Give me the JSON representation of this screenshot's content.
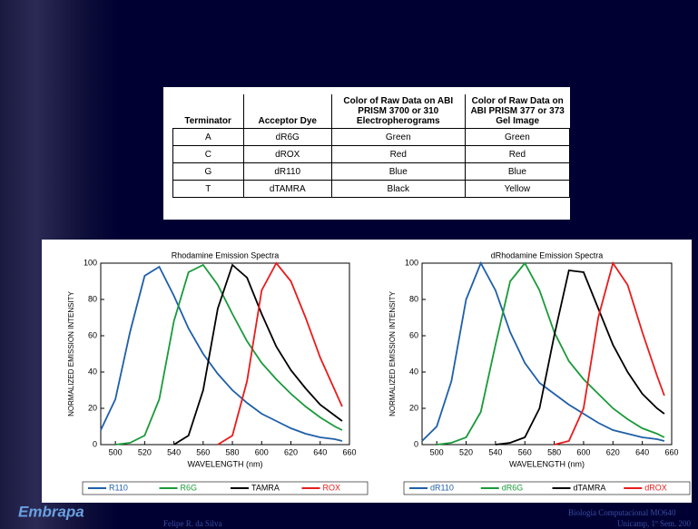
{
  "table": {
    "headers": [
      "Terminator",
      "Acceptor Dye",
      "Color of Raw Data on ABI PRISM 3700 or 310 Electropherograms",
      "Color of Raw Data on ABI PRISM 377 or 373 Gel Image"
    ],
    "rows": [
      [
        "A",
        "dR6G",
        "Green",
        "Green"
      ],
      [
        "C",
        "dROX",
        "Red",
        "Red"
      ],
      [
        "G",
        "dR110",
        "Blue",
        "Blue"
      ],
      [
        "T",
        "dTAMRA",
        "Black",
        "Yellow"
      ]
    ]
  },
  "chart_data": [
    {
      "type": "line",
      "title": "Rhodamine Emission Spectra",
      "x_label": "WAVELENGTH (nm)",
      "y_label": "NORMALIZED EMISSION INTENSITY",
      "x": [
        490,
        500,
        510,
        520,
        530,
        540,
        550,
        560,
        570,
        580,
        590,
        600,
        610,
        620,
        630,
        640,
        650,
        655
      ],
      "xlim": [
        490,
        660
      ],
      "xticks": [
        500,
        520,
        540,
        560,
        580,
        600,
        620,
        640,
        660
      ],
      "ylim": [
        0,
        100
      ],
      "yticks": [
        0,
        20,
        40,
        60,
        80,
        100
      ],
      "series": [
        {
          "name": "R110",
          "color": "#1f5fa8",
          "values": [
            8,
            25,
            62,
            93,
            98,
            82,
            64,
            50,
            39,
            30,
            23,
            17,
            13,
            9,
            6,
            4,
            3,
            2
          ]
        },
        {
          "name": "R6G",
          "color": "#1a9a3a",
          "values": [
            null,
            0,
            1,
            5,
            25,
            68,
            95,
            99,
            88,
            72,
            57,
            45,
            36,
            28,
            21,
            15,
            10,
            8
          ]
        },
        {
          "name": "TAMRA",
          "color": "#000000",
          "values": [
            null,
            null,
            null,
            null,
            null,
            0,
            5,
            30,
            75,
            99,
            92,
            72,
            54,
            41,
            31,
            22,
            16,
            13
          ]
        },
        {
          "name": "ROX",
          "color": "#e81c1c",
          "values": [
            null,
            null,
            null,
            null,
            null,
            null,
            null,
            null,
            0,
            5,
            35,
            85,
            100,
            90,
            70,
            48,
            30,
            21
          ]
        }
      ]
    },
    {
      "type": "line",
      "title": "dRhodamine Emission Spectra",
      "x_label": "WAVELENGTH (nm)",
      "y_label": "NORMALIZED EMISSION INTENSITY",
      "x": [
        490,
        500,
        510,
        520,
        530,
        540,
        550,
        560,
        570,
        580,
        590,
        600,
        610,
        620,
        630,
        640,
        650,
        655
      ],
      "xlim": [
        490,
        660
      ],
      "xticks": [
        500,
        520,
        540,
        560,
        580,
        600,
        620,
        640,
        660
      ],
      "ylim": [
        0,
        100
      ],
      "yticks": [
        0,
        20,
        40,
        60,
        80,
        100
      ],
      "series": [
        {
          "name": "dR110",
          "color": "#1f5fa8",
          "values": [
            2,
            10,
            35,
            80,
            100,
            85,
            62,
            45,
            34,
            28,
            22,
            17,
            12,
            8,
            6,
            4,
            3,
            2
          ]
        },
        {
          "name": "dR6G",
          "color": "#1a9a3a",
          "values": [
            null,
            0,
            1,
            4,
            18,
            55,
            90,
            100,
            85,
            62,
            46,
            36,
            28,
            20,
            14,
            9,
            6,
            4
          ]
        },
        {
          "name": "dTAMRA",
          "color": "#000000",
          "values": [
            null,
            null,
            null,
            null,
            null,
            0,
            1,
            4,
            20,
            60,
            96,
            95,
            75,
            55,
            40,
            28,
            20,
            17
          ]
        },
        {
          "name": "dROX",
          "color": "#e81c1c",
          "values": [
            null,
            null,
            null,
            null,
            null,
            null,
            null,
            null,
            null,
            0,
            2,
            20,
            70,
            100,
            88,
            62,
            38,
            27
          ]
        }
      ]
    }
  ],
  "footer": {
    "logo": "Embrapa",
    "author": "Felipe R. da Silva",
    "course": "Biologia Computacional MO640",
    "term": "Unicamp, 1º Sem. 200"
  }
}
